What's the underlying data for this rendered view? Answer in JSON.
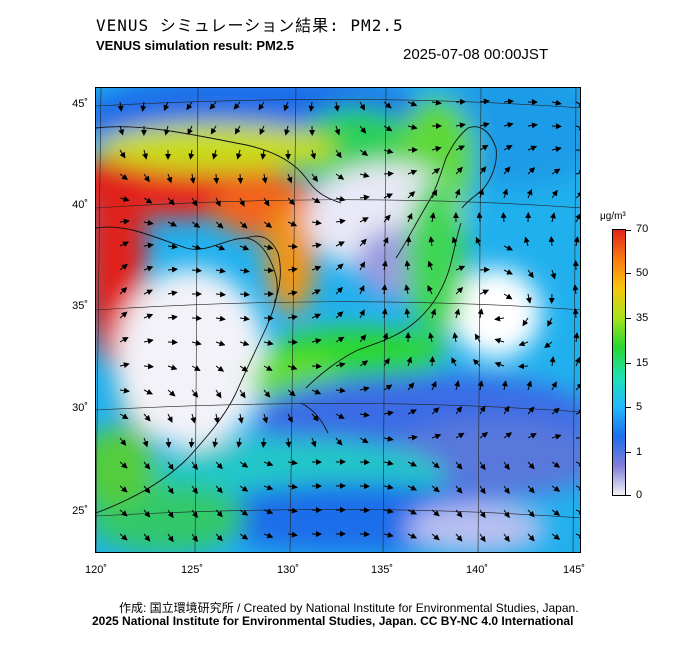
{
  "header": {
    "title_jp": "VENUS シミュレーション結果: PM2.5",
    "title_en": "VENUS simulation result: PM2.5",
    "timestamp": "2025-07-08 00:00JST"
  },
  "map": {
    "lat_ticks": [
      "45˚",
      "40˚",
      "35˚",
      "30˚",
      "25˚"
    ],
    "lon_ticks": [
      "120˚",
      "125˚",
      "130˚",
      "135˚",
      "140˚",
      "145˚"
    ]
  },
  "colorbar": {
    "unit": "μg/m³",
    "ticks": [
      "70",
      "50",
      "35",
      "15",
      "5",
      "1",
      "0"
    ],
    "colors": [
      "#f2f2f8",
      "#7f7fd9",
      "#1e6dea",
      "#22b7ff",
      "#1fe0b8",
      "#2ad72f",
      "#a8e21c",
      "#f7c60f",
      "#fb7a12",
      "#e0241c"
    ]
  },
  "footer": {
    "credit": "作成: 国立環境研究所 / Created by National Institute for Environmental Studies, Japan.",
    "copyright": "2025 National Institute for Environmental Studies, Japan. CC BY-NC 4.0 International"
  }
}
